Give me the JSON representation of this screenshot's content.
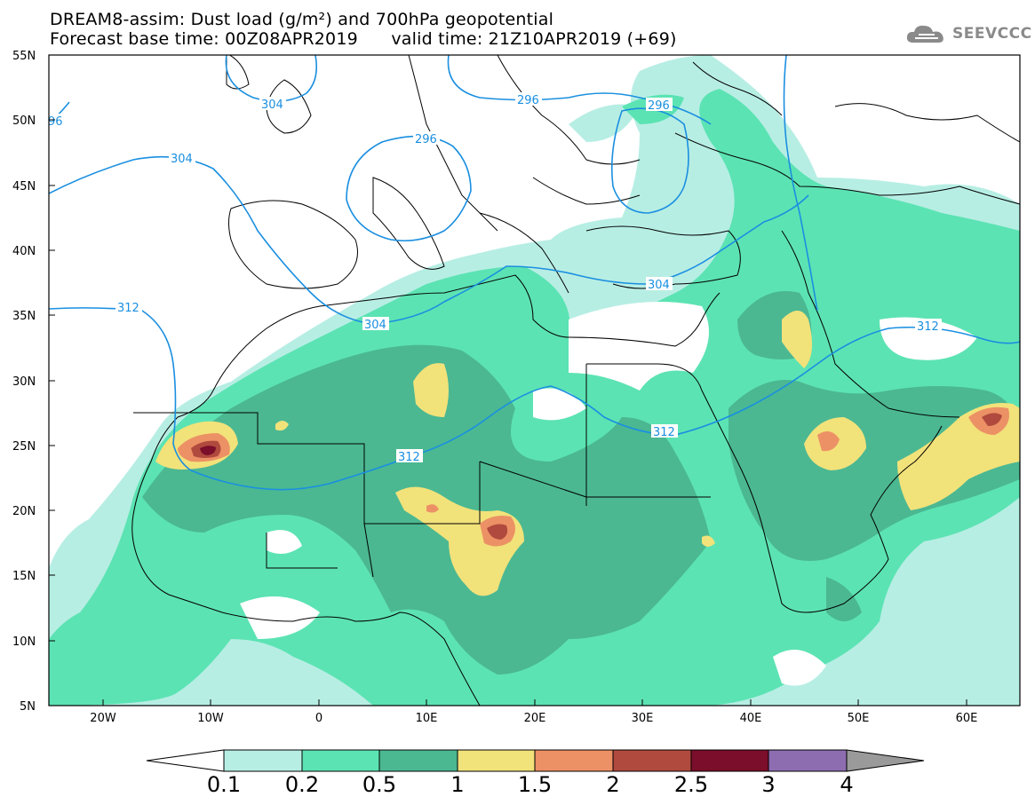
{
  "header": {
    "title_line1": "DREAM8-assim: Dust load (g/m²) and 700hPa geopotential",
    "title_line2": "Forecast base time: 00Z08APR2019      valid time: 21Z10APR2019 (+69)",
    "logo_text": "SEEVCCC",
    "logo_icon": "cloud-logo-icon"
  },
  "map": {
    "lat_labels": [
      "55N",
      "50N",
      "45N",
      "40N",
      "35N",
      "30N",
      "25N",
      "20N",
      "15N",
      "10N",
      "5N"
    ],
    "lon_labels": [
      "20W",
      "10W",
      "0",
      "10E",
      "20E",
      "30E",
      "40E",
      "50E",
      "60E"
    ],
    "contour_labels": [
      "304",
      "296",
      "96",
      "304",
      "296",
      "296",
      "312",
      "304",
      "304",
      "312",
      "312",
      "312"
    ],
    "colors": {
      "contour": "#1a8fe0",
      "border": "#000000"
    }
  },
  "colorbar": {
    "labels": [
      "0.1",
      "0.2",
      "0.5",
      "1",
      "1.5",
      "2",
      "2.5",
      "3",
      "4"
    ],
    "colors": [
      "#ffffff",
      "#b7eee4",
      "#5ce3b3",
      "#4bb892",
      "#f2e27a",
      "#ec9165",
      "#b04a3e",
      "#7b0e2a",
      "#8d6db0",
      "#9a9a9a"
    ]
  }
}
